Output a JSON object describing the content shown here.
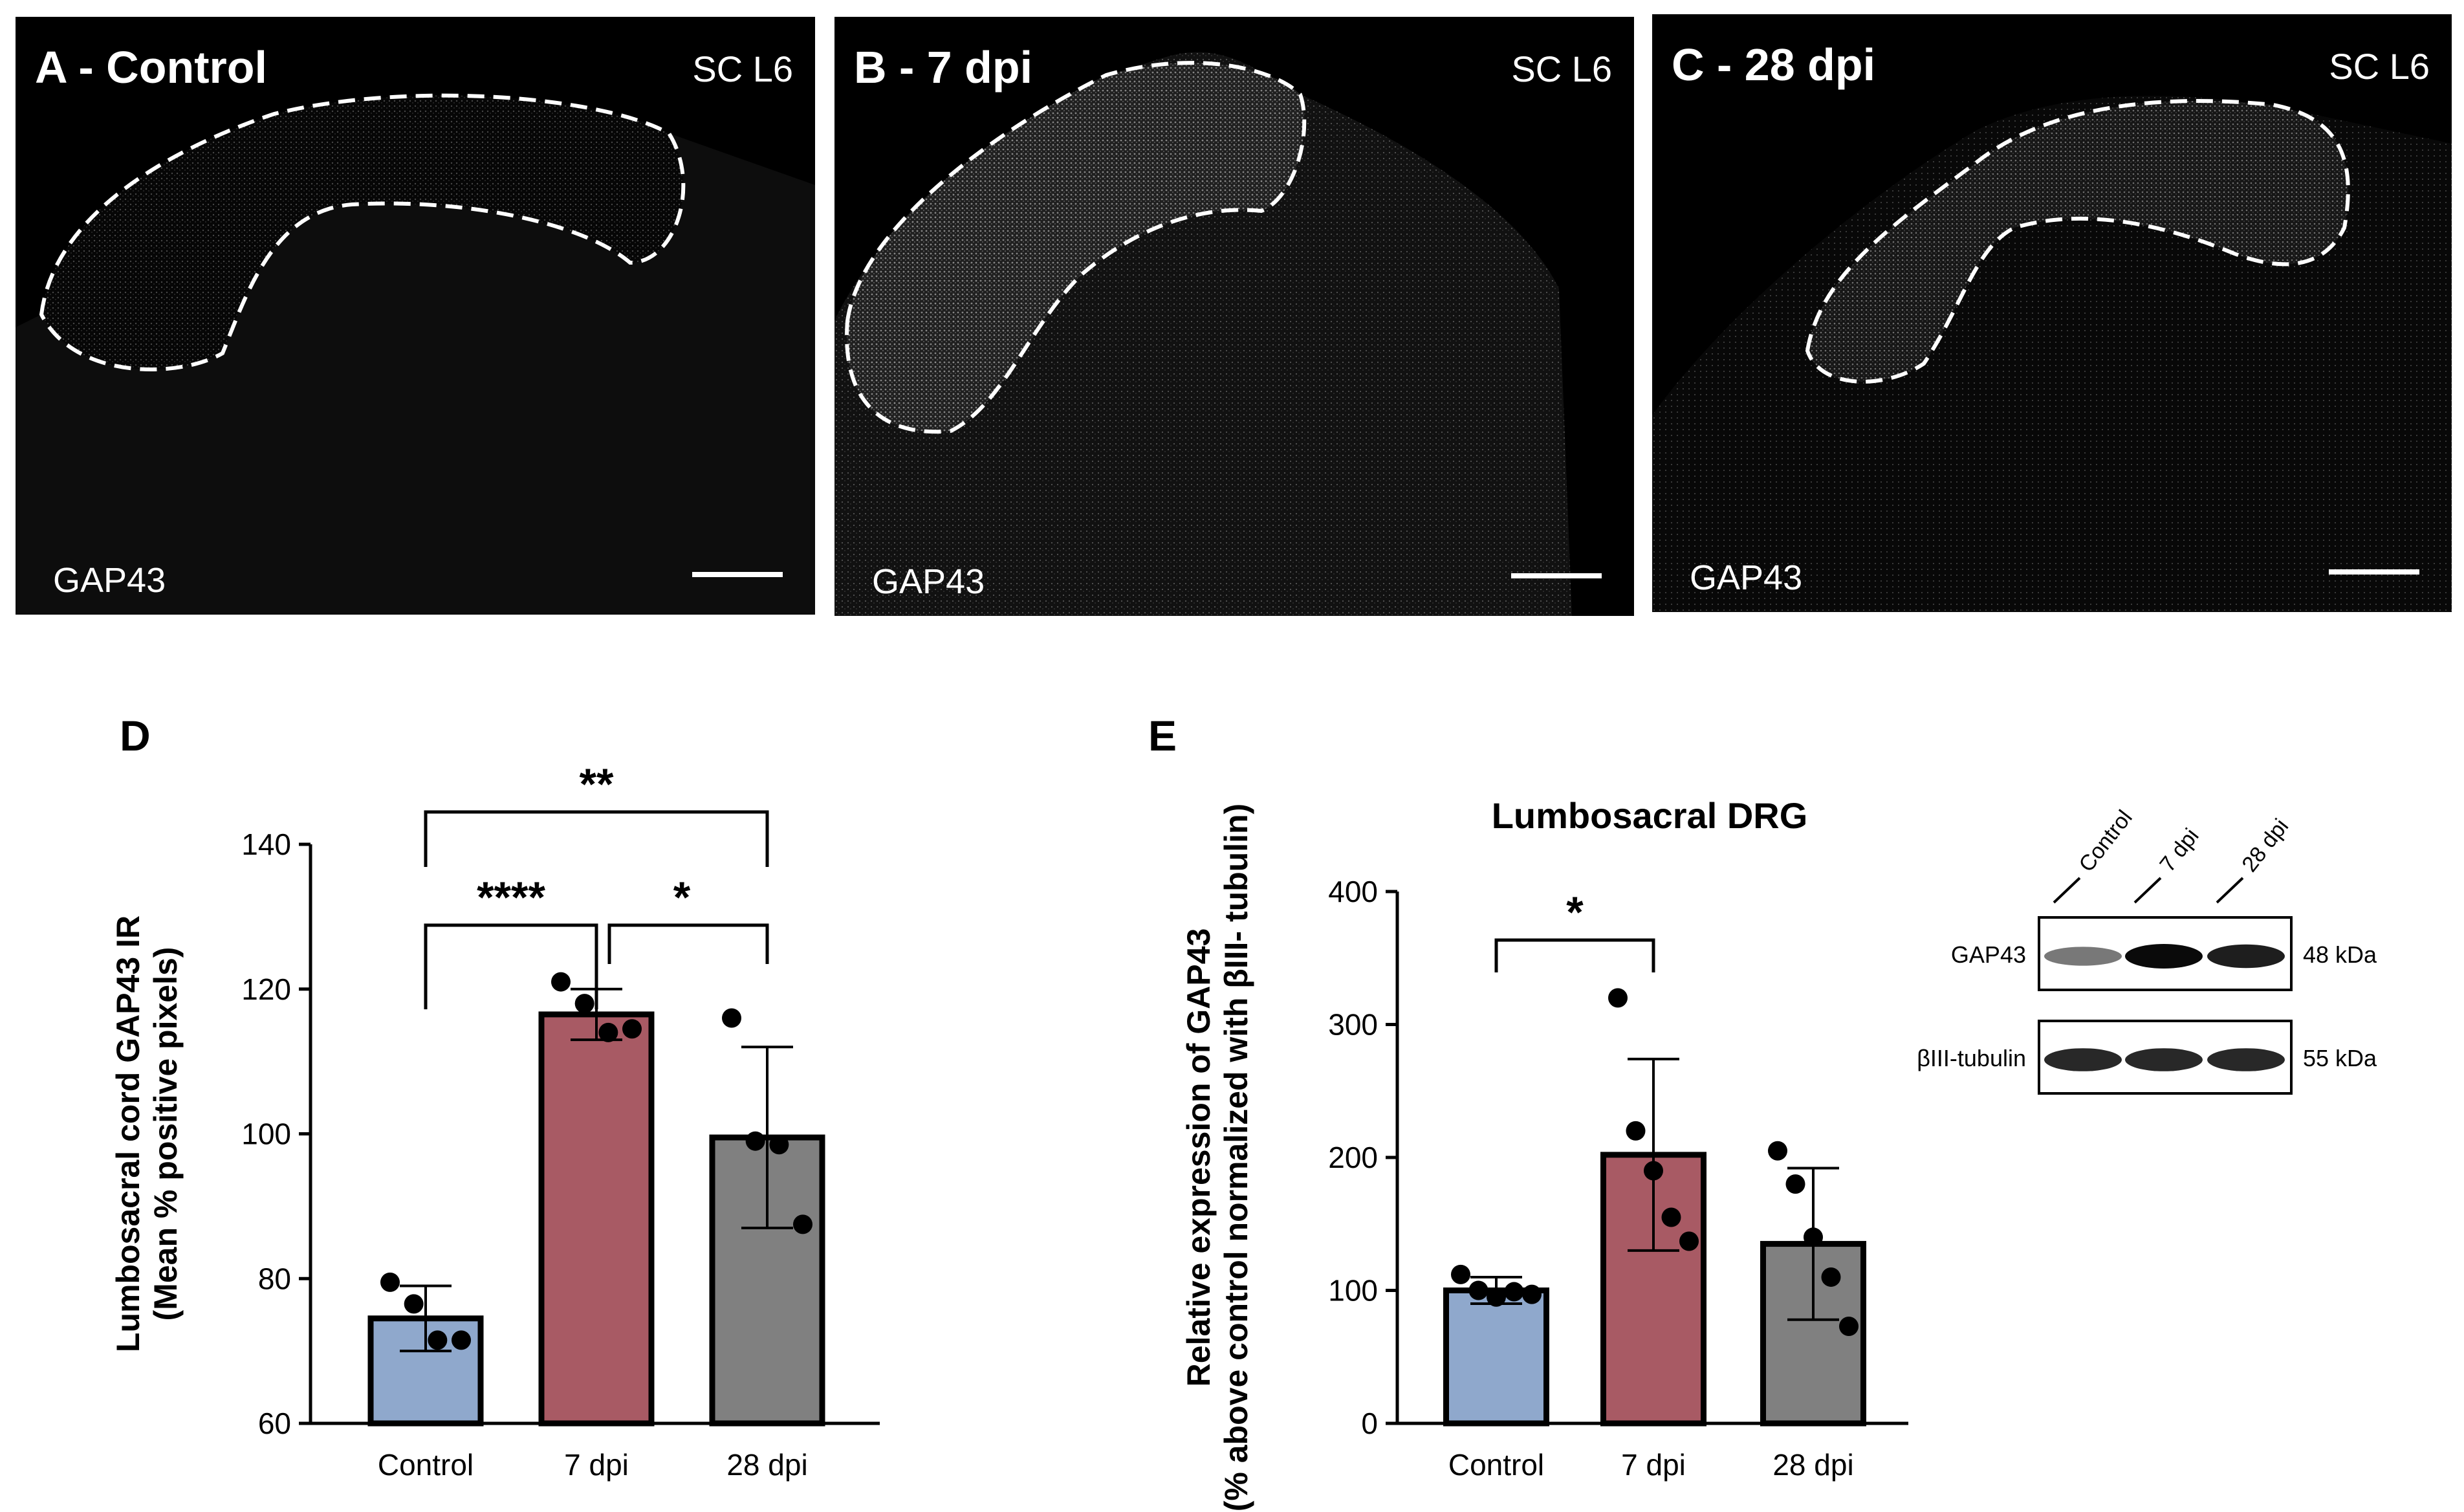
{
  "panels": [
    {
      "title": "A - Control",
      "region": "SC L6",
      "marker": "GAP43"
    },
    {
      "title": "B - 7 dpi",
      "region": "SC L6",
      "marker": "GAP43"
    },
    {
      "title": "C - 28 dpi",
      "region": "SC L6",
      "marker": "GAP43"
    }
  ],
  "chart_data": [
    {
      "panel_letter": "D",
      "type": "bar",
      "title": "",
      "xlabel": "",
      "ylabel": "Lumbosacral cord GAP43 IR",
      "ylabel2": "(Mean % positive pixels)",
      "categories": [
        "Control",
        "7 dpi",
        "28 dpi"
      ],
      "values": [
        74.5,
        116.5,
        99.5
      ],
      "error": [
        4.5,
        3.5,
        12.5
      ],
      "points": [
        [
          79.5,
          76.5,
          71.5,
          71.5
        ],
        [
          121.0,
          118.0,
          114.0,
          114.5
        ],
        [
          116.0,
          99.0,
          98.5,
          87.5
        ]
      ],
      "bar_colors": [
        "#8fa8cc",
        "#a85a64",
        "#808080"
      ],
      "ylim": [
        60,
        140
      ],
      "yticks": [
        60,
        80,
        100,
        120,
        140
      ],
      "significance": [
        {
          "from": 0,
          "to": 1,
          "label": "****"
        },
        {
          "from": 1,
          "to": 2,
          "label": "*"
        },
        {
          "from": 0,
          "to": 2,
          "label": "**"
        }
      ]
    },
    {
      "panel_letter": "E",
      "type": "bar",
      "title": "Lumbosacral DRG",
      "xlabel": "",
      "ylabel": "Relative expression of GAP43",
      "ylabel2": "(% above control normalized with βIII- tubulin)",
      "categories": [
        "Control",
        "7 dpi",
        "28 dpi"
      ],
      "values": [
        100,
        202,
        135
      ],
      "error": [
        10,
        72,
        57
      ],
      "points": [
        [
          112,
          100,
          95,
          99,
          97
        ],
        [
          320,
          220,
          190,
          155,
          137
        ],
        [
          205,
          180,
          140,
          110,
          73
        ]
      ],
      "bar_colors": [
        "#8fa8cc",
        "#a85a64",
        "#808080"
      ],
      "ylim": [
        0,
        400
      ],
      "yticks": [
        0,
        100,
        200,
        300,
        400
      ],
      "significance": [
        {
          "from": 0,
          "to": 1,
          "label": "*"
        }
      ]
    }
  ],
  "blot": {
    "lanes": [
      "Control",
      "7 dpi",
      "28 dpi"
    ],
    "rows": [
      {
        "protein": "GAP43",
        "size": "48 kDa",
        "intensities": [
          0.45,
          1.0,
          0.9
        ]
      },
      {
        "protein": "βIII-tubulin",
        "size": "55 kDa",
        "intensities": [
          0.85,
          0.85,
          0.85
        ]
      }
    ]
  }
}
